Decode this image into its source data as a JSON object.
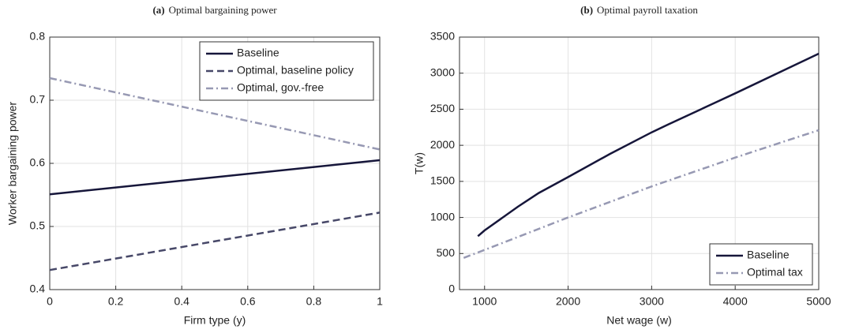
{
  "chart_data": [
    {
      "type": "line",
      "panel": "(a)",
      "title": "Optimal bargaining power",
      "xlabel": "Firm type (y)",
      "ylabel": "Worker bargaining power",
      "xlim": [
        0,
        1
      ],
      "xticks": [
        0,
        0.2,
        0.4,
        0.6,
        0.8,
        1
      ],
      "ylim": [
        0.4,
        0.8
      ],
      "yticks": [
        0.4,
        0.5,
        0.6,
        0.7,
        0.8
      ],
      "grid": true,
      "legend": "top-right",
      "series": [
        {
          "name": "Baseline",
          "color": "#16163a",
          "dash": "solid",
          "x": [
            0,
            1
          ],
          "values": [
            0.551,
            0.605
          ]
        },
        {
          "name": "Optimal, baseline policy",
          "color": "#474868",
          "dash": "dashed",
          "x": [
            0,
            1
          ],
          "values": [
            0.431,
            0.522
          ]
        },
        {
          "name": "Optimal, gov.-free",
          "color": "#9799b3",
          "dash": "dashdot",
          "x": [
            0,
            1
          ],
          "values": [
            0.735,
            0.622
          ]
        }
      ]
    },
    {
      "type": "line",
      "panel": "(b)",
      "title": "Optimal payroll taxation",
      "xlabel": "Net wage (w)",
      "ylabel": "T(w)",
      "xlim": [
        700,
        5000
      ],
      "xticks": [
        1000,
        2000,
        3000,
        4000,
        5000
      ],
      "ylim": [
        0,
        3500
      ],
      "yticks": [
        0,
        500,
        1000,
        1500,
        2000,
        2500,
        3000,
        3500
      ],
      "grid": true,
      "legend": "bottom-right",
      "series": [
        {
          "name": "Baseline",
          "color": "#16163a",
          "dash": "solid",
          "x": [
            920,
            1000,
            1400,
            1650,
            2000,
            2500,
            3000,
            3200,
            4000,
            5000
          ],
          "values": [
            740,
            820,
            1150,
            1340,
            1560,
            1880,
            2180,
            2290,
            2720,
            3270
          ]
        },
        {
          "name": "Optimal tax",
          "color": "#9799b3",
          "dash": "dashdot",
          "x": [
            750,
            1000,
            2000,
            3000,
            4000,
            5000
          ],
          "values": [
            440,
            550,
            1000,
            1430,
            1830,
            2210
          ]
        }
      ]
    }
  ]
}
